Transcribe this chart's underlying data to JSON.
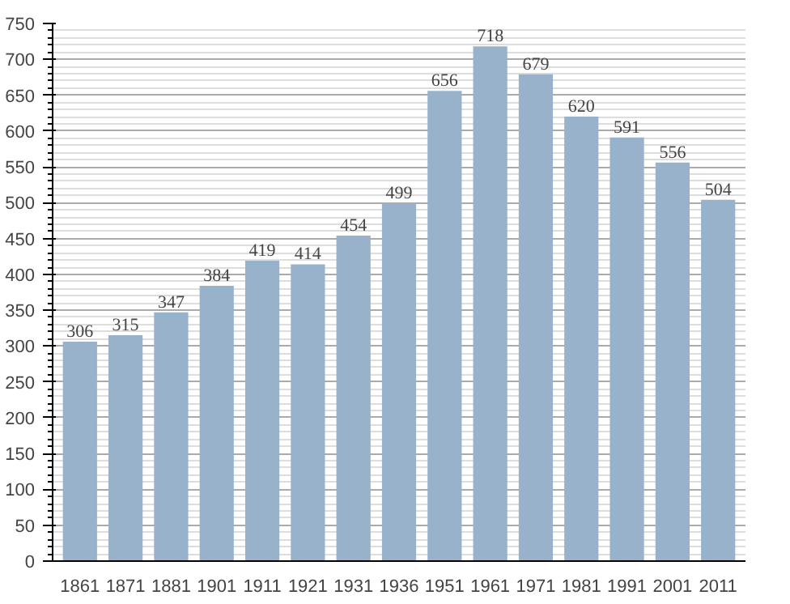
{
  "chart_data": {
    "type": "bar",
    "categories": [
      "1861",
      "1871",
      "1881",
      "1901",
      "1911",
      "1921",
      "1931",
      "1936",
      "1951",
      "1961",
      "1971",
      "1981",
      "1991",
      "2001",
      "2011"
    ],
    "values": [
      306,
      315,
      347,
      384,
      419,
      414,
      454,
      499,
      656,
      718,
      679,
      620,
      591,
      556,
      504
    ],
    "color": "#98b2cc",
    "data_labels": true,
    "grid": "y",
    "ylim": [
      0,
      750
    ],
    "yticks": [
      0,
      50,
      100,
      150,
      200,
      250,
      300,
      350,
      400,
      450,
      500,
      550,
      600,
      650,
      700,
      750
    ]
  }
}
